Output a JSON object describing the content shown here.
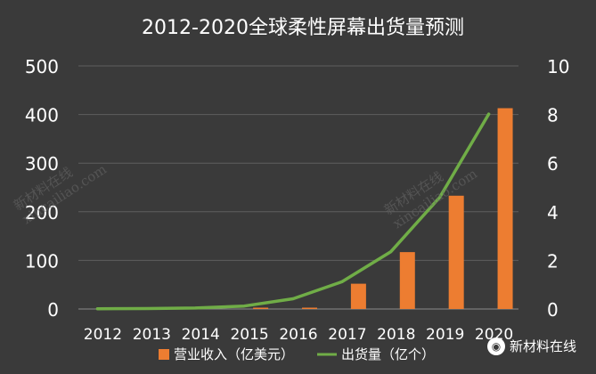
{
  "chart_data": {
    "type": "bar+line",
    "title": "2012-2020全球柔性屏幕出货量预测",
    "categories": [
      "2012",
      "2013",
      "2014",
      "2015",
      "2016",
      "2017",
      "2018",
      "2019",
      "2020"
    ],
    "series": [
      {
        "name": "营业收入（亿美元）",
        "type": "bar",
        "axis": "left",
        "color": "#ED7D31",
        "values": [
          1,
          0,
          0,
          1,
          2,
          52,
          117,
          233,
          413
        ]
      },
      {
        "name": "出货量（亿个）",
        "type": "line",
        "axis": "right",
        "color": "#70AD47",
        "values": [
          0.01,
          0.02,
          0.04,
          0.12,
          0.42,
          1.12,
          2.36,
          4.6,
          8.02
        ]
      }
    ],
    "y_left": {
      "ylim": [
        0,
        500
      ],
      "ticks": [
        "0",
        "100",
        "200",
        "300",
        "400",
        "500"
      ]
    },
    "y_right": {
      "ylim": [
        0,
        10
      ],
      "ticks": [
        "0",
        "2",
        "4",
        "6",
        "8",
        "10"
      ]
    },
    "grid": true,
    "legend_position": "bottom"
  },
  "watermarks": {
    "text_1": "新材料在线",
    "text_2": "xincailiao.com"
  },
  "brand": {
    "label": "新材料在线"
  },
  "colors": {
    "background": "#3a3a3a",
    "text": "#ffffff",
    "gridline": "#5e5e5e"
  }
}
